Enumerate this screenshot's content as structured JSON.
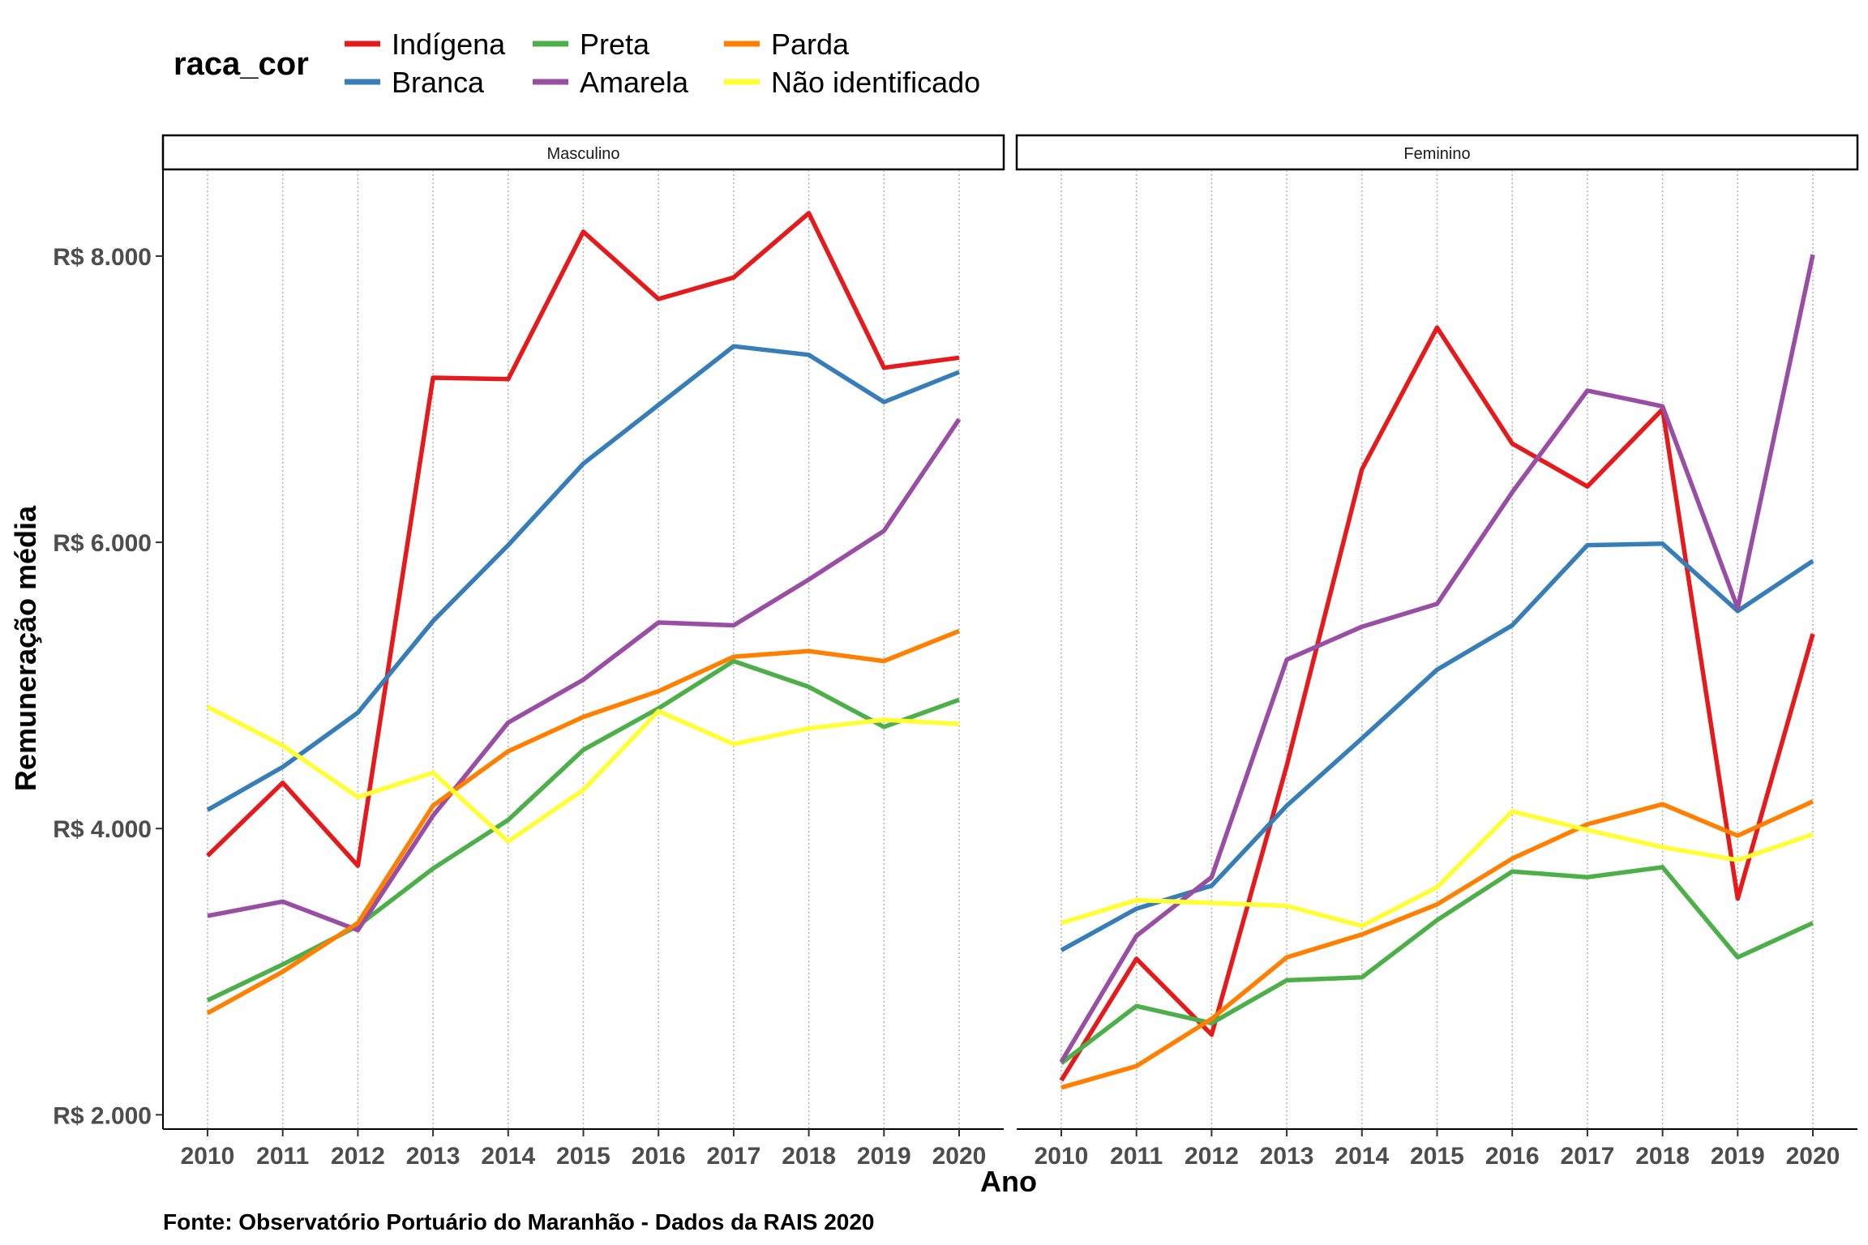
{
  "chart_data": {
    "type": "line",
    "facet_by": "sexo",
    "legend": {
      "title": "raca_cor",
      "position": "top",
      "entries": [
        {
          "name": "Indígena",
          "color": "#E41A1C"
        },
        {
          "name": "Branca",
          "color": "#377EB8"
        },
        {
          "name": "Preta",
          "color": "#4DAF4A"
        },
        {
          "name": "Amarela",
          "color": "#984EA3"
        },
        {
          "name": "Parda",
          "color": "#FF7F00"
        },
        {
          "name": "Não identificado",
          "color": "#FFFF33"
        }
      ]
    },
    "x": [
      2010,
      2011,
      2012,
      2013,
      2014,
      2015,
      2016,
      2017,
      2018,
      2019,
      2020
    ],
    "x_tick_labels": [
      "2010",
      "2011",
      "2012",
      "2013",
      "2014",
      "2015",
      "2016",
      "2017",
      "2018",
      "2019",
      "2020"
    ],
    "xlabel": "Ano",
    "ylabel": "Remuneração média",
    "ylim": [
      1900,
      8600
    ],
    "y_ticks": [
      2000,
      4000,
      6000,
      8000
    ],
    "y_tick_labels": [
      "R$ 2.000",
      "R$ 4.000",
      "R$ 6.000",
      "R$ 8.000"
    ],
    "grid": "vertical dotted at each year",
    "caption": "Fonte: Observatório Portuário do Maranhão - Dados da RAIS 2020",
    "panels": [
      {
        "title": "Masculino",
        "series": [
          {
            "name": "Indígena",
            "values": [
              3810,
              4320,
              3740,
              7150,
              7140,
              8170,
              7700,
              7850,
              8300,
              7220,
              7290
            ]
          },
          {
            "name": "Branca",
            "values": [
              4130,
              4430,
              4810,
              5450,
              5980,
              6550,
              6960,
              7370,
              7310,
              6980,
              7190
            ]
          },
          {
            "name": "Preta",
            "values": [
              2800,
              3050,
              3320,
              3720,
              4060,
              4550,
              4840,
              5170,
              4990,
              4710,
              4900
            ]
          },
          {
            "name": "Amarela",
            "values": [
              3390,
              3490,
              3290,
              4090,
              4740,
              5040,
              5440,
              5420,
              5740,
              6080,
              6860
            ]
          },
          {
            "name": "Parda",
            "values": [
              2710,
              3000,
              3340,
              4160,
              4540,
              4780,
              4960,
              5200,
              5240,
              5170,
              5380
            ]
          },
          {
            "name": "Não identificado",
            "values": [
              4850,
              4580,
              4220,
              4390,
              3910,
              4270,
              4820,
              4590,
              4700,
              4760,
              4730
            ]
          }
        ]
      },
      {
        "title": "Feminino",
        "series": [
          {
            "name": "Indígena",
            "values": [
              2240,
              3090,
              2560,
              4440,
              6510,
              7500,
              6690,
              6390,
              6930,
              3510,
              5360
            ]
          },
          {
            "name": "Branca",
            "values": [
              3150,
              3440,
              3600,
              4160,
              4630,
              5110,
              5420,
              5980,
              5990,
              5520,
              5870
            ]
          },
          {
            "name": "Preta",
            "values": [
              2360,
              2760,
              2640,
              2940,
              2960,
              3360,
              3700,
              3660,
              3730,
              3100,
              3340
            ]
          },
          {
            "name": "Amarela",
            "values": [
              2370,
              3250,
              3660,
              5180,
              5410,
              5570,
              6350,
              7060,
              6950,
              5540,
              8010
            ]
          },
          {
            "name": "Parda",
            "values": [
              2190,
              2340,
              2670,
              3100,
              3260,
              3470,
              3790,
              4030,
              4170,
              3950,
              4190
            ]
          },
          {
            "name": "Não identificado",
            "values": [
              3340,
              3500,
              3480,
              3460,
              3320,
              3590,
              4120,
              3990,
              3870,
              3780,
              3960
            ]
          }
        ]
      }
    ]
  }
}
